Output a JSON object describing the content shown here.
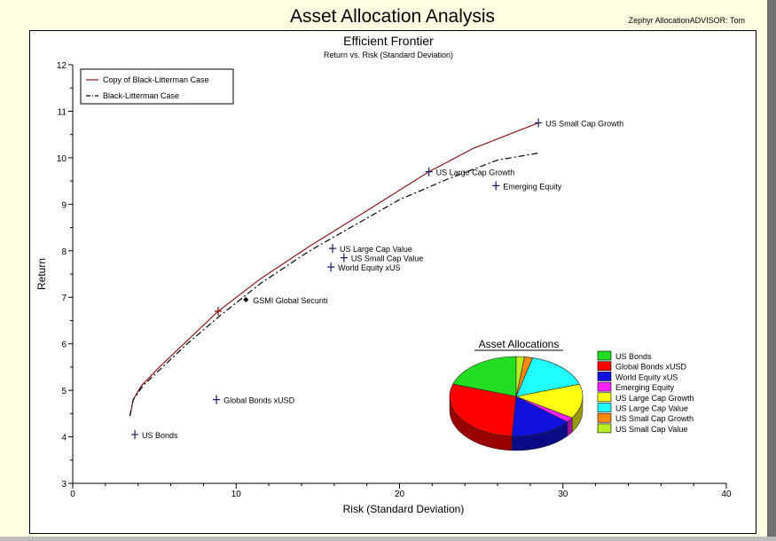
{
  "title": "Asset Allocation Analysis",
  "app_label": "Zephyr AllocationADVISOR: Tom",
  "chart_data": [
    {
      "type": "line",
      "title": "Efficient Frontier",
      "subtitle": "Return vs. Risk (Standard Deviation)",
      "xlabel": "Risk (Standard Deviation)",
      "ylabel": "Return",
      "xlim": [
        0,
        40
      ],
      "ylim": [
        3,
        12
      ],
      "x_ticks": [
        0,
        10,
        20,
        30,
        40
      ],
      "y_ticks": [
        3,
        4,
        5,
        6,
        7,
        8,
        9,
        10,
        11,
        12
      ],
      "grid": false,
      "legend_position": "top-left",
      "series": [
        {
          "name": "Copy of Black-Litterman Case",
          "style": "solid",
          "color": "#8b1a1a",
          "points": [
            [
              3.5,
              4.45
            ],
            [
              3.7,
              4.8
            ],
            [
              4.2,
              5.1
            ],
            [
              5.3,
              5.5
            ],
            [
              6.8,
              6.0
            ],
            [
              8.9,
              6.7
            ],
            [
              11.5,
              7.4
            ],
            [
              14.5,
              8.1
            ],
            [
              17.5,
              8.75
            ],
            [
              21.8,
              9.7
            ],
            [
              24.5,
              10.2
            ],
            [
              28.5,
              10.75
            ]
          ]
        },
        {
          "name": "Black-Litterman Case",
          "style": "dashdot",
          "color": "#000000",
          "points": [
            [
              3.5,
              4.45
            ],
            [
              3.7,
              4.8
            ],
            [
              4.3,
              5.1
            ],
            [
              5.5,
              5.5
            ],
            [
              7.0,
              6.0
            ],
            [
              9.0,
              6.6
            ],
            [
              11.5,
              7.3
            ],
            [
              14.5,
              8.0
            ],
            [
              17.5,
              8.6
            ],
            [
              20.0,
              9.1
            ],
            [
              23.0,
              9.55
            ],
            [
              26.0,
              9.95
            ],
            [
              28.5,
              10.1
            ]
          ]
        }
      ],
      "assets": [
        {
          "label": "US Small Cap Growth",
          "x": 28.5,
          "y": 10.75
        },
        {
          "label": "US Large Cap Growth",
          "x": 21.8,
          "y": 9.7
        },
        {
          "label": "Emerging Equity",
          "x": 25.9,
          "y": 9.4
        },
        {
          "label": "US Large Cap Value",
          "x": 15.9,
          "y": 8.05
        },
        {
          "label": "US Small Cap Value",
          "x": 16.6,
          "y": 7.85
        },
        {
          "label": "World Equity xUS",
          "x": 15.8,
          "y": 7.65
        },
        {
          "label": "GSMI Global Securiti",
          "x": 10.6,
          "y": 6.95,
          "marker": "diamond"
        },
        {
          "label": "Global Bonds xUSD",
          "x": 8.8,
          "y": 4.8
        },
        {
          "label": "US Bonds",
          "x": 3.8,
          "y": 4.05
        }
      ],
      "selected_point": {
        "x": 8.9,
        "y": 6.7
      }
    },
    {
      "type": "pie",
      "title": "Asset Allocations",
      "slices": [
        {
          "label": "US Bonds",
          "value": 20,
          "color": "#22dd22"
        },
        {
          "label": "Global Bonds xUSD",
          "value": 29,
          "color": "#ff0000"
        },
        {
          "label": "World Equity xUS",
          "value": 15,
          "color": "#1111dd"
        },
        {
          "label": "Emerging Equity",
          "value": 2,
          "color": "#ff22ff"
        },
        {
          "label": "US Large Cap Growth",
          "value": 14,
          "color": "#ffff11"
        },
        {
          "label": "US Large Cap Value",
          "value": 16,
          "color": "#22ffff"
        },
        {
          "label": "US Small Cap Growth",
          "value": 2,
          "color": "#ff8811"
        },
        {
          "label": "US Small Cap Value",
          "value": 2,
          "color": "#bbee22"
        }
      ]
    }
  ]
}
